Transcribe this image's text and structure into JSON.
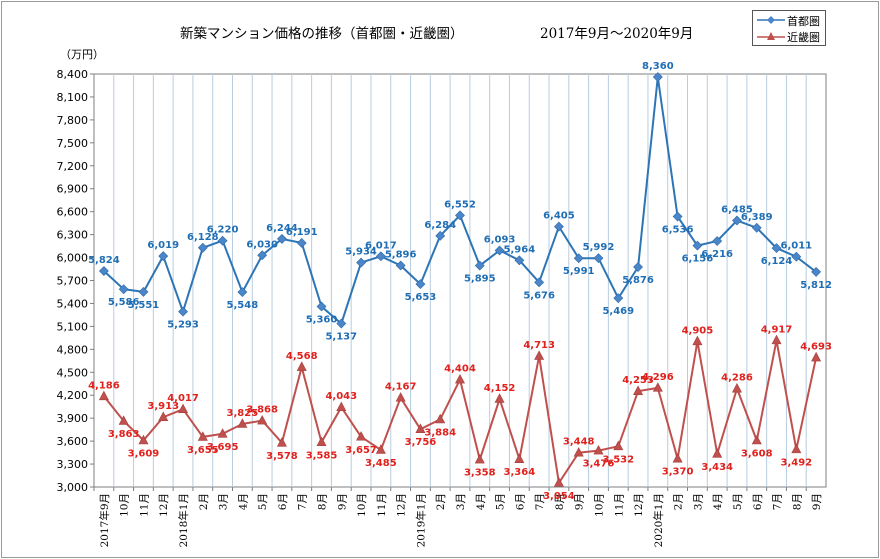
{
  "chart_data": {
    "type": "line",
    "title": "新築マンション価格の推移（首都圏・近畿圏）",
    "period": "2017年9月～2020年9月",
    "ylabel": "（万円）",
    "ylim": [
      3000,
      8400
    ],
    "yticks": [
      "3,000",
      "3,300",
      "3,600",
      "3,900",
      "4,200",
      "4,500",
      "4,800",
      "5,100",
      "5,400",
      "5,700",
      "6,000",
      "6,300",
      "6,600",
      "6,900",
      "7,200",
      "7,500",
      "7,800",
      "8,100",
      "8,400"
    ],
    "grid": true,
    "legend_position": "top-right",
    "categories": [
      "2017年9月",
      "10月",
      "11月",
      "12月",
      "2018年1月",
      "2月",
      "3月",
      "4月",
      "5月",
      "6月",
      "7月",
      "8月",
      "9月",
      "10月",
      "11月",
      "12月",
      "2019年1月",
      "2月",
      "3月",
      "4月",
      "5月",
      "6月",
      "7月",
      "8月",
      "9月",
      "10月",
      "11月",
      "12月",
      "2020年1月",
      "2月",
      "3月",
      "4月",
      "5月",
      "6月",
      "7月",
      "8月",
      "9月"
    ],
    "series": [
      {
        "name": "首都圏",
        "color": "#2e75b6",
        "marker": "diamond",
        "values": [
          5824,
          5586,
          5551,
          6019,
          5293,
          6128,
          6220,
          5548,
          6030,
          6244,
          6191,
          5360,
          5137,
          5934,
          6017,
          5896,
          5653,
          6284,
          6552,
          5895,
          6093,
          5964,
          5676,
          6405,
          5991,
          5992,
          5469,
          5876,
          8360,
          6536,
          6156,
          6216,
          6485,
          6389,
          6124,
          6011,
          5812
        ],
        "labels": [
          "5,824",
          "5,586",
          "5,551",
          "6,019",
          "5,293",
          "6,128",
          "6,220",
          "5,548",
          "6,030",
          "6,244",
          "6,191",
          "5,360",
          "5,137",
          "5,934",
          "6,017",
          "5,896",
          "5,653",
          "6,284",
          "6,552",
          "5,895",
          "6,093",
          "5,964",
          "5,676",
          "6,405",
          "5,991",
          "5,992",
          "5,469",
          "5,876",
          "8,360",
          "6,536",
          "6,156",
          "6,216",
          "6,485",
          "6,389",
          "6,124",
          "6,011",
          "5,812"
        ]
      },
      {
        "name": "近畿圏",
        "color": "#c0504d",
        "marker": "triangle",
        "values": [
          4186,
          3863,
          3609,
          3913,
          4017,
          3655,
          3695,
          3825,
          3868,
          3578,
          4568,
          3585,
          4043,
          3657,
          3485,
          4167,
          3756,
          3884,
          4404,
          3358,
          4152,
          3364,
          4713,
          3054,
          3448,
          3476,
          3532,
          4253,
          4296,
          3370,
          4905,
          3434,
          4286,
          3608,
          4917,
          3492,
          4693
        ],
        "labels": [
          "4,186",
          "3,863",
          "3,609",
          "3,913",
          "4,017",
          "3,655",
          "3,695",
          "3,825",
          "3,868",
          "3,578",
          "4,568",
          "3,585",
          "4,043",
          "3,657",
          "3,485",
          "4,167",
          "3,756",
          "3,884",
          "4,404",
          "3,358",
          "4,152",
          "3,364",
          "4,713",
          "3,054",
          "3,448",
          "3,476",
          "3,532",
          "4,253",
          "4,296",
          "3,370",
          "4,905",
          "3,434",
          "4,286",
          "3,608",
          "4,917",
          "3,492",
          "4,693"
        ]
      }
    ]
  },
  "colors": {
    "series1_label": "#1f6eb4",
    "series2_label": "#e0211c",
    "grid": "#b8cde0"
  }
}
